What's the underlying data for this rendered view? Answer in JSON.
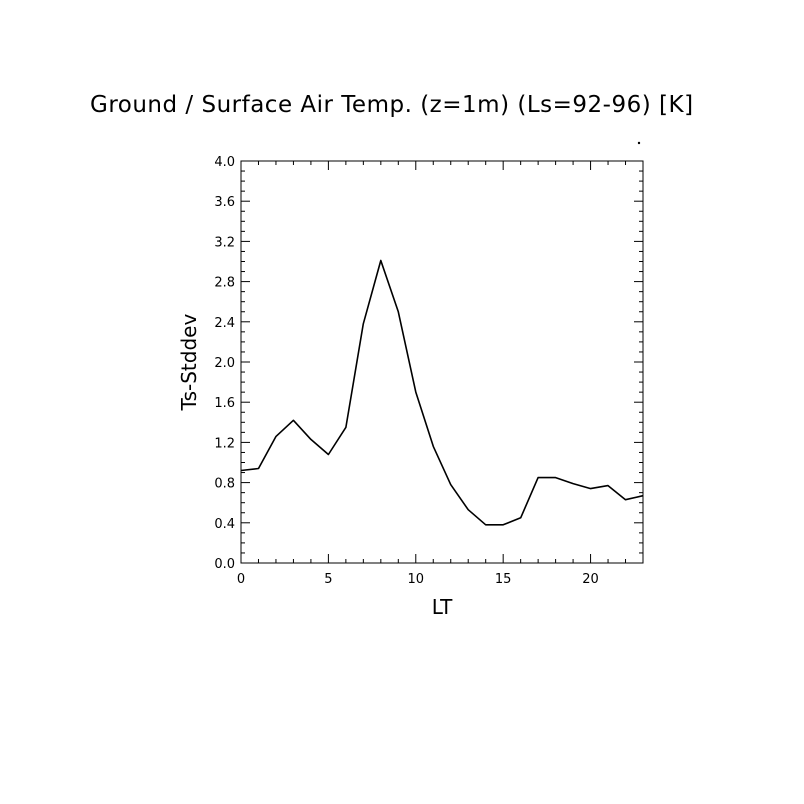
{
  "chart_data": {
    "type": "line",
    "title": "Ground / Surface Air Temp. (z=1m) (Ls=92-96) [K]",
    "xlabel": "LT",
    "ylabel": "Ts-Stddev",
    "xlim": [
      0,
      23
    ],
    "ylim": [
      0.0,
      4.0
    ],
    "xticks": [
      0,
      5,
      10,
      15,
      20
    ],
    "xtick_labels": [
      "0",
      "5",
      "10",
      "15",
      "20"
    ],
    "yticks": [
      0.0,
      0.4,
      0.8,
      1.2,
      1.6,
      2.0,
      2.4,
      2.8,
      3.2,
      3.6,
      4.0
    ],
    "ytick_labels": [
      "0.0",
      "0.4",
      "0.8",
      "1.2",
      "1.6",
      "2.0",
      "2.4",
      "2.8",
      "3.2",
      "3.6",
      "4.0"
    ],
    "grid": false,
    "series": [
      {
        "x": [
          0,
          1,
          2,
          3,
          4,
          5,
          6,
          7,
          8,
          9,
          10,
          11,
          12,
          13,
          14,
          15,
          16,
          17,
          18,
          19,
          20,
          21,
          22,
          23
        ],
        "values": [
          0.92,
          0.94,
          1.26,
          1.42,
          1.23,
          1.08,
          1.35,
          2.38,
          3.01,
          2.5,
          1.7,
          1.16,
          0.78,
          0.53,
          0.38,
          0.38,
          0.45,
          0.85,
          0.85,
          0.79,
          0.74,
          0.77,
          0.63,
          0.67
        ]
      }
    ]
  }
}
